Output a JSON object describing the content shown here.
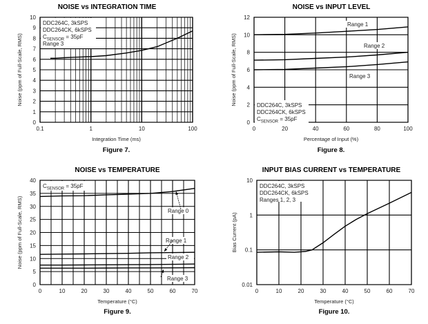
{
  "chart_data": [
    {
      "type": "line",
      "title": "NOISE vs INTEGRATION TIME",
      "figure": "Figure 7.",
      "xlabel": "Integration Time (ms)",
      "ylabel": "Noise (ppm of Full-Scale, RMS)",
      "xscale": "log",
      "xlim": [
        0.1,
        100
      ],
      "ylim": [
        0,
        10
      ],
      "xticks": [
        "0.1",
        "1",
        "10",
        "100"
      ],
      "yticks": [
        "0",
        "1",
        "2",
        "3",
        "4",
        "5",
        "6",
        "7",
        "8",
        "9",
        "10"
      ],
      "notes": [
        "DDC264C, 3kSPS",
        "DDC264CK, 6kSPS",
        "C",
        "SENSOR",
        " = 35pF",
        "Range 3"
      ],
      "series": [
        {
          "name": "Range 3",
          "x": [
            0.16,
            0.2,
            0.3,
            0.5,
            1,
            2,
            5,
            10,
            20,
            50,
            100
          ],
          "y": [
            6.1,
            6.1,
            6.15,
            6.2,
            6.25,
            6.35,
            6.6,
            6.85,
            7.2,
            8.0,
            8.7
          ]
        }
      ]
    },
    {
      "type": "line",
      "title": "NOISE vs INPUT LEVEL",
      "figure": "Figure 8.",
      "xlabel": "Percentage of Input (%)",
      "ylabel": "Noise (ppm of Full-Scale, RMS)",
      "xscale": "linear",
      "xlim": [
        0,
        100
      ],
      "ylim": [
        0,
        12
      ],
      "xticks": [
        "0",
        "20",
        "40",
        "60",
        "80",
        "100"
      ],
      "yticks": [
        "0",
        "2",
        "4",
        "6",
        "8",
        "10",
        "12"
      ],
      "notes": [
        "DDC264C, 3kSPS",
        "DDC264CK, 6kSPS",
        "C",
        "SENSOR",
        " = 35pF"
      ],
      "series": [
        {
          "name": "Range 1",
          "x": [
            0,
            20,
            40,
            60,
            80,
            100
          ],
          "y": [
            10,
            10.05,
            10.2,
            10.4,
            10.6,
            10.9
          ]
        },
        {
          "name": "Range 2",
          "x": [
            0,
            20,
            40,
            60,
            80,
            100
          ],
          "y": [
            7.1,
            7.15,
            7.3,
            7.45,
            7.7,
            8.0
          ]
        },
        {
          "name": "Range 3",
          "x": [
            0,
            20,
            40,
            60,
            80,
            100
          ],
          "y": [
            6.0,
            6.05,
            6.2,
            6.35,
            6.6,
            6.9
          ]
        }
      ]
    },
    {
      "type": "line",
      "title": "NOISE vs TEMPERATURE",
      "figure": "Figure 9.",
      "xlabel": "Temperature (°C)",
      "ylabel": "Noise (ppm of Full-Scale, RMS)",
      "xscale": "linear",
      "xlim": [
        0,
        70
      ],
      "ylim": [
        0,
        40
      ],
      "xticks": [
        "0",
        "10",
        "20",
        "30",
        "40",
        "50",
        "60",
        "70"
      ],
      "yticks": [
        "0",
        "5",
        "10",
        "15",
        "20",
        "25",
        "30",
        "35",
        "40"
      ],
      "notes": [
        "C",
        "SENSOR",
        " = 35pF"
      ],
      "series": [
        {
          "name": "Range 0",
          "x": [
            0,
            10,
            20,
            30,
            40,
            50,
            60,
            70
          ],
          "y": [
            33.8,
            34.0,
            34.1,
            34.4,
            34.7,
            35.0,
            35.7,
            36.9
          ]
        },
        {
          "name": "Range 1",
          "x": [
            0,
            10,
            20,
            30,
            40,
            50,
            60,
            70
          ],
          "y": [
            11.6,
            11.7,
            11.8,
            11.9,
            12.0,
            12.2,
            12.3,
            12.4
          ]
        },
        {
          "name": "Range 2",
          "x": [
            0,
            10,
            20,
            30,
            40,
            50,
            60,
            70
          ],
          "y": [
            7.5,
            7.5,
            7.55,
            7.6,
            7.65,
            7.7,
            7.8,
            7.9
          ]
        },
        {
          "name": "Range 3",
          "x": [
            0,
            10,
            20,
            30,
            40,
            50,
            60,
            70
          ],
          "y": [
            6.3,
            6.3,
            6.3,
            6.35,
            6.4,
            6.4,
            6.45,
            6.5
          ]
        }
      ]
    },
    {
      "type": "line",
      "title": "INPUT BIAS CURRENT vs TEMPERATURE",
      "figure": "Figure 10.",
      "xlabel": "Temperature (°C)",
      "ylabel": "Bias Current (pA)",
      "xscale": "linear",
      "yscale": "log",
      "xlim": [
        0,
        70
      ],
      "ylim": [
        0.01,
        10
      ],
      "xticks": [
        "0",
        "10",
        "20",
        "30",
        "40",
        "50",
        "60",
        "70"
      ],
      "yticks": [
        "0.01",
        "0.1",
        "1",
        "10"
      ],
      "notes": [
        "DDC264C, 3kSPS",
        "DDC264CK, 6kSPS",
        "Ranges 1, 2, 3"
      ],
      "series": [
        {
          "name": "Ranges 1, 2, 3",
          "x": [
            0,
            10,
            17,
            22,
            25,
            30,
            35,
            40,
            45,
            50,
            60,
            70
          ],
          "y": [
            0.085,
            0.088,
            0.085,
            0.09,
            0.1,
            0.16,
            0.28,
            0.48,
            0.75,
            1.1,
            2.2,
            4.5
          ]
        }
      ]
    }
  ]
}
